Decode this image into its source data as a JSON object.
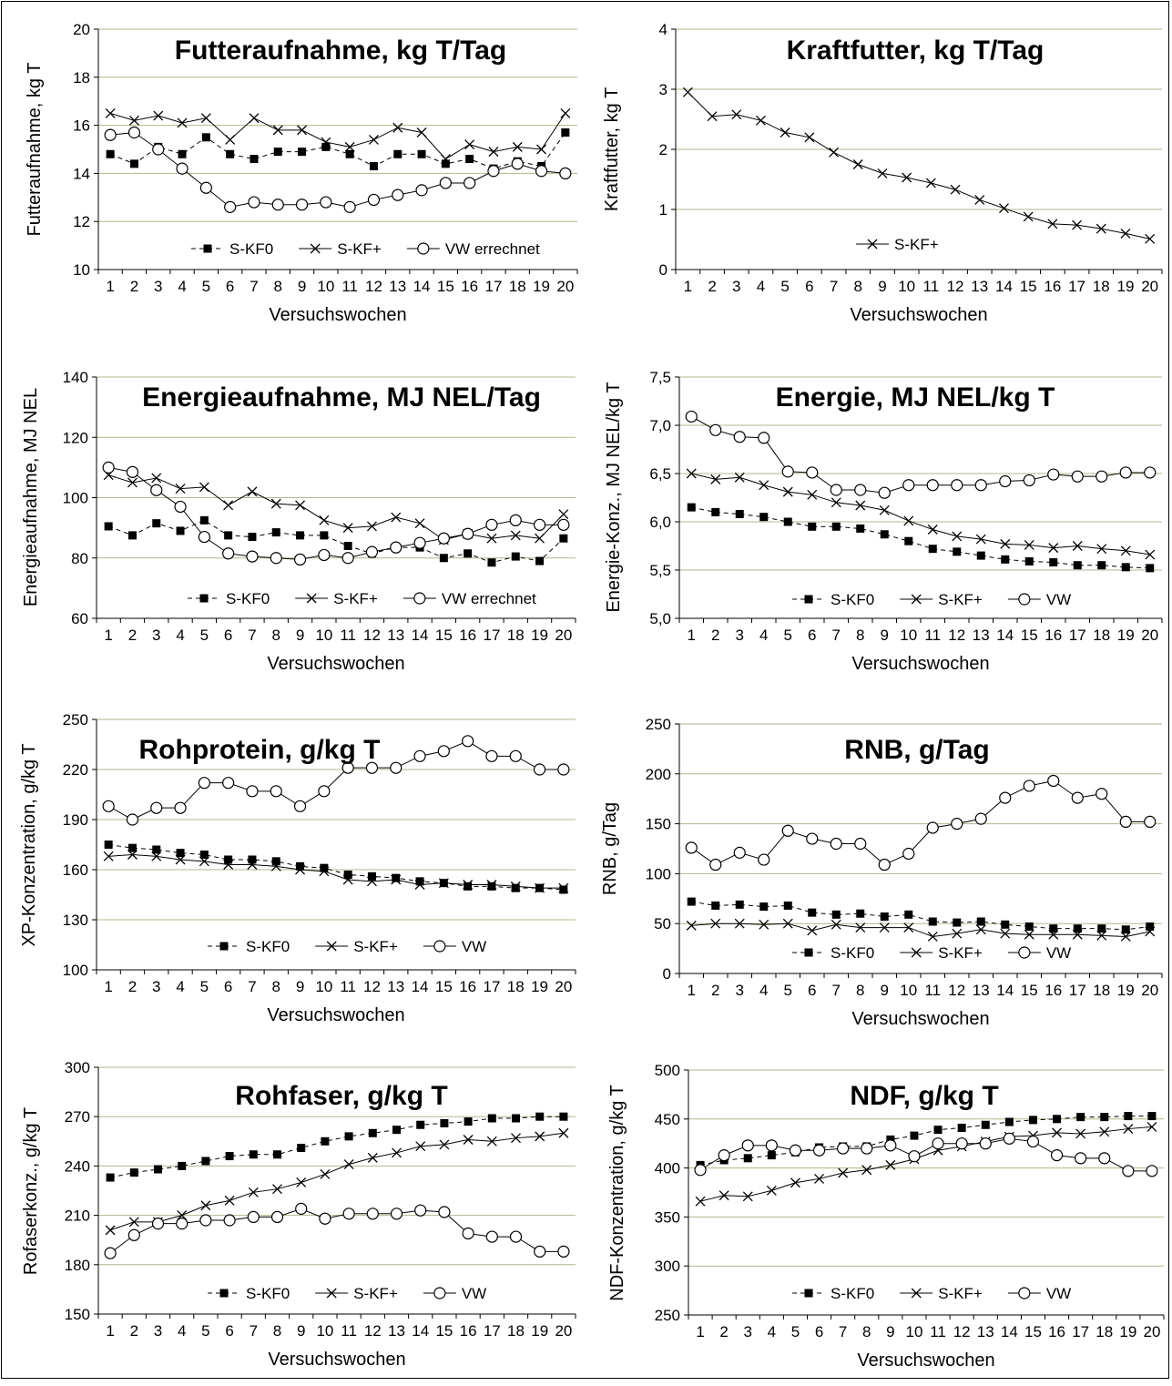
{
  "chart_data": [
    {
      "type": "line",
      "title": "Futteraufnahme, kg T/Tag",
      "xlabel": "Versuchswochen",
      "ylabel": "Futteraufnahme, kg T",
      "ylim": [
        10,
        20
      ],
      "yticks": [
        "10",
        "12",
        "14",
        "16",
        "18",
        "20"
      ],
      "grid": true,
      "legend": "bottom",
      "categories": [
        "1",
        "2",
        "3",
        "4",
        "5",
        "6",
        "7",
        "8",
        "9",
        "10",
        "11",
        "12",
        "13",
        "14",
        "15",
        "16",
        "17",
        "18",
        "19",
        "20"
      ],
      "series": [
        {
          "name": "S-KF0",
          "style": "square-dashed",
          "values": [
            14.8,
            14.4,
            15.1,
            14.8,
            15.5,
            14.8,
            14.6,
            14.9,
            14.9,
            15.1,
            14.8,
            14.3,
            14.8,
            14.8,
            14.4,
            14.6,
            14.2,
            14.5,
            14.3,
            15.7
          ]
        },
        {
          "name": "S-KF+",
          "style": "cross-solid",
          "values": [
            16.5,
            16.2,
            16.4,
            16.1,
            16.3,
            15.4,
            16.3,
            15.8,
            15.8,
            15.3,
            15.1,
            15.4,
            15.9,
            15.7,
            14.6,
            15.2,
            14.9,
            15.1,
            15.0,
            16.5
          ]
        },
        {
          "name": "VW errechnet",
          "style": "circle-solid",
          "values": [
            15.6,
            15.7,
            15.0,
            14.2,
            13.4,
            12.6,
            12.8,
            12.7,
            12.7,
            12.8,
            12.6,
            12.9,
            13.1,
            13.3,
            13.6,
            13.6,
            14.1,
            14.4,
            14.1,
            14.0
          ]
        }
      ]
    },
    {
      "type": "line",
      "title": "Kraftfutter, kg T/Tag",
      "xlabel": "Versuchswochen",
      "ylabel": "Kraftfutter, kg T",
      "ylim": [
        0,
        4
      ],
      "yticks": [
        "0",
        "1",
        "2",
        "3",
        "4"
      ],
      "grid": true,
      "legend": "bottom-left",
      "categories": [
        "1",
        "2",
        "3",
        "4",
        "5",
        "6",
        "7",
        "8",
        "9",
        "10",
        "11",
        "12",
        "13",
        "14",
        "15",
        "16",
        "17",
        "18",
        "19",
        "20"
      ],
      "series": [
        {
          "name": "S-KF+",
          "style": "cross-solid",
          "values": [
            2.95,
            2.55,
            2.58,
            2.48,
            2.28,
            2.2,
            1.95,
            1.75,
            1.6,
            1.53,
            1.44,
            1.33,
            1.16,
            1.02,
            0.88,
            0.76,
            0.74,
            0.68,
            0.6,
            0.51
          ]
        }
      ]
    },
    {
      "type": "line",
      "title": "Energieaufnahme, MJ NEL/Tag",
      "xlabel": "Versuchswochen",
      "ylabel": "Energieaufnahme, MJ NEL",
      "ylim": [
        60,
        140
      ],
      "yticks": [
        "60",
        "80",
        "100",
        "120",
        "140"
      ],
      "grid": true,
      "legend": "bottom",
      "categories": [
        "1",
        "2",
        "3",
        "4",
        "5",
        "6",
        "7",
        "8",
        "9",
        "10",
        "11",
        "12",
        "13",
        "14",
        "15",
        "16",
        "17",
        "18",
        "19",
        "20"
      ],
      "series": [
        {
          "name": "S-KF0",
          "style": "square-dashed",
          "values": [
            90.5,
            87.5,
            91.5,
            89,
            92.5,
            87.5,
            87,
            88.5,
            87.5,
            87.5,
            84,
            81.5,
            83.5,
            83.5,
            80,
            81.5,
            78.5,
            80.5,
            79,
            86.5
          ]
        },
        {
          "name": "S-KF+",
          "style": "cross-solid",
          "values": [
            107.5,
            105,
            106.5,
            103,
            103.5,
            97.5,
            102,
            98,
            97.5,
            92.5,
            90,
            90.5,
            93.5,
            91.5,
            86,
            88,
            86.5,
            87.5,
            86.5,
            94.5
          ]
        },
        {
          "name": "VW errechnet",
          "style": "circle-solid",
          "values": [
            110,
            108.5,
            102.5,
            97,
            87,
            81.5,
            80.5,
            80,
            79.5,
            81,
            80,
            82,
            83.5,
            85,
            86.5,
            88,
            91,
            92.5,
            91,
            91
          ]
        }
      ]
    },
    {
      "type": "line",
      "title": "Energie, MJ NEL/kg T",
      "xlabel": "Versuchswochen",
      "ylabel": "Energie-Konz., MJ NEL/kg T",
      "ylim": [
        5.0,
        7.5
      ],
      "yticks": [
        "5,0",
        "5,5",
        "6,0",
        "6,5",
        "7,0",
        "7,5"
      ],
      "grid": true,
      "legend": "bottom",
      "categories": [
        "1",
        "2",
        "3",
        "4",
        "5",
        "6",
        "7",
        "8",
        "9",
        "10",
        "11",
        "12",
        "13",
        "14",
        "15",
        "16",
        "17",
        "18",
        "19",
        "20"
      ],
      "series": [
        {
          "name": "S-KF0",
          "style": "square-dashed",
          "values": [
            6.15,
            6.1,
            6.08,
            6.05,
            6.0,
            5.95,
            5.95,
            5.93,
            5.87,
            5.8,
            5.72,
            5.69,
            5.65,
            5.61,
            5.59,
            5.58,
            5.55,
            5.55,
            5.53,
            5.52
          ]
        },
        {
          "name": "S-KF+",
          "style": "cross-solid",
          "values": [
            6.5,
            6.44,
            6.46,
            6.38,
            6.31,
            6.28,
            6.2,
            6.17,
            6.12,
            6.01,
            5.92,
            5.85,
            5.82,
            5.77,
            5.76,
            5.73,
            5.75,
            5.72,
            5.7,
            5.66
          ]
        },
        {
          "name": "VW",
          "style": "circle-solid",
          "values": [
            7.09,
            6.95,
            6.88,
            6.87,
            6.52,
            6.51,
            6.33,
            6.33,
            6.3,
            6.38,
            6.38,
            6.38,
            6.38,
            6.42,
            6.43,
            6.49,
            6.47,
            6.47,
            6.51,
            6.51
          ]
        }
      ]
    },
    {
      "type": "line",
      "title": "Rohprotein, g/kg T",
      "xlabel": "Versuchswochen",
      "ylabel": "XP-Konzentration, g/kg T",
      "ylim": [
        100,
        250
      ],
      "yticks": [
        "100",
        "130",
        "160",
        "190",
        "220",
        "250"
      ],
      "grid": true,
      "legend": "bottom",
      "categories": [
        "1",
        "2",
        "3",
        "4",
        "5",
        "6",
        "7",
        "8",
        "9",
        "10",
        "11",
        "12",
        "13",
        "14",
        "15",
        "16",
        "17",
        "18",
        "19",
        "20"
      ],
      "series": [
        {
          "name": "S-KF0",
          "style": "square-dashed",
          "values": [
            175,
            173,
            172,
            170,
            169,
            166,
            166,
            165,
            162,
            161,
            157,
            156,
            155,
            153,
            152,
            150,
            150,
            149,
            149,
            148
          ]
        },
        {
          "name": "S-KF+",
          "style": "cross-solid",
          "values": [
            168,
            169,
            168,
            166,
            165,
            163,
            163,
            162,
            160,
            159,
            154,
            153,
            154,
            151,
            152,
            151,
            151,
            150,
            149,
            149
          ]
        },
        {
          "name": "VW",
          "style": "circle-solid",
          "values": [
            198,
            190,
            197,
            197,
            212,
            212,
            207,
            207,
            198,
            207,
            221,
            221,
            221,
            228,
            231,
            237,
            228,
            228,
            220,
            220
          ]
        }
      ]
    },
    {
      "type": "line",
      "title": "RNB, g/Tag",
      "xlabel": "Versuchswochen",
      "ylabel": "RNB, g/Tag",
      "ylim": [
        0,
        250
      ],
      "yticks": [
        "0",
        "50",
        "100",
        "150",
        "200",
        "250"
      ],
      "grid": true,
      "legend": "bottom",
      "categories": [
        "1",
        "2",
        "3",
        "4",
        "5",
        "6",
        "7",
        "8",
        "9",
        "10",
        "11",
        "12",
        "13",
        "14",
        "15",
        "16",
        "17",
        "18",
        "19",
        "20"
      ],
      "series": [
        {
          "name": "S-KF0",
          "style": "square-dashed",
          "values": [
            72,
            68,
            69,
            67,
            68,
            61,
            59,
            60,
            57,
            59,
            52,
            51,
            52,
            49,
            47,
            45,
            45,
            45,
            44,
            47
          ]
        },
        {
          "name": "S-KF+",
          "style": "cross-solid",
          "values": [
            48,
            50,
            50,
            49,
            50,
            43,
            49,
            46,
            46,
            46,
            37,
            40,
            44,
            40,
            39,
            39,
            39,
            38,
            37,
            42
          ]
        },
        {
          "name": "VW",
          "style": "circle-solid",
          "values": [
            126,
            109,
            121,
            114,
            143,
            135,
            130,
            130,
            109,
            120,
            146,
            150,
            155,
            176,
            188,
            193,
            176,
            180,
            152,
            152
          ]
        }
      ]
    },
    {
      "type": "line",
      "title": "Rohfaser, g/kg T",
      "xlabel": "Versuchswochen",
      "ylabel": "Rofaserkonz., g/kg T",
      "ylim": [
        150,
        300
      ],
      "yticks": [
        "150",
        "180",
        "210",
        "240",
        "270",
        "300"
      ],
      "grid": true,
      "legend": "bottom",
      "categories": [
        "1",
        "2",
        "3",
        "4",
        "5",
        "6",
        "7",
        "8",
        "9",
        "10",
        "11",
        "12",
        "13",
        "14",
        "15",
        "16",
        "17",
        "18",
        "19",
        "20"
      ],
      "series": [
        {
          "name": "S-KF0",
          "style": "square-dashed",
          "values": [
            233,
            236,
            238,
            240,
            243,
            246,
            247,
            247,
            251,
            255,
            258,
            260,
            262,
            265,
            266,
            267,
            269,
            269,
            270,
            270
          ]
        },
        {
          "name": "S-KF+",
          "style": "cross-solid",
          "values": [
            201,
            206,
            206,
            210,
            216,
            219,
            224,
            226,
            230,
            235,
            241,
            245,
            248,
            252,
            253,
            256,
            255,
            257,
            258,
            260
          ]
        },
        {
          "name": "VW",
          "style": "circle-solid",
          "values": [
            187,
            198,
            205,
            205,
            207,
            207,
            209,
            209,
            214,
            208,
            211,
            211,
            211,
            213,
            212,
            199,
            197,
            197,
            188,
            188
          ]
        }
      ]
    },
    {
      "type": "line",
      "title": "NDF, g/kg T",
      "xlabel": "Versuchswochen",
      "ylabel": "NDF-Konzentration, g/kg T",
      "ylim": [
        250,
        500
      ],
      "yticks": [
        "250",
        "300",
        "350",
        "400",
        "450",
        "500"
      ],
      "grid": true,
      "legend": "bottom",
      "categories": [
        "1",
        "2",
        "3",
        "4",
        "5",
        "6",
        "7",
        "8",
        "9",
        "10",
        "11",
        "12",
        "13",
        "14",
        "15",
        "16",
        "17",
        "18",
        "19",
        "20"
      ],
      "series": [
        {
          "name": "S-KF0",
          "style": "square-dashed",
          "values": [
            403,
            408,
            410,
            413,
            416,
            421,
            422,
            422,
            429,
            433,
            439,
            441,
            444,
            447,
            449,
            450,
            452,
            452,
            453,
            453
          ]
        },
        {
          "name": "S-KF+",
          "style": "cross-solid",
          "values": [
            366,
            372,
            371,
            377,
            385,
            389,
            395,
            398,
            403,
            409,
            418,
            422,
            427,
            432,
            433,
            436,
            435,
            437,
            440,
            442
          ]
        },
        {
          "name": "VW",
          "style": "circle-solid",
          "values": [
            398,
            413,
            423,
            423,
            418,
            418,
            420,
            420,
            423,
            412,
            425,
            425,
            425,
            430,
            427,
            413,
            410,
            410,
            397,
            397
          ]
        }
      ]
    }
  ]
}
